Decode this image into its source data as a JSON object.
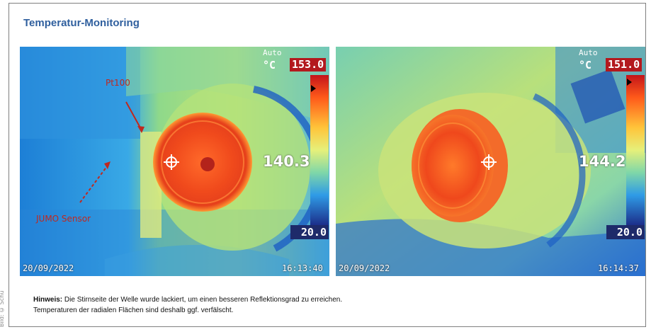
{
  "title": "Temperatur-Monitoring",
  "side_credit": "Bild: © Schu",
  "images": [
    {
      "mode": "Auto",
      "unit": "°C",
      "max": "153.0",
      "min": "20.0",
      "spot": "140.3",
      "date": "20/09/2022",
      "time": "16:13:40",
      "annotations": {
        "pt100": "Pt100",
        "sensor": "JUMO Sensor"
      }
    },
    {
      "mode": "Auto",
      "unit": "°C",
      "max": "151.0",
      "min": "20.0",
      "spot": "144.2",
      "date": "20/09/2022",
      "time": "16:14:37"
    }
  ],
  "note": {
    "label": "Hinweis:",
    "line1": "Die Stirnseite der Welle wurde lackiert, um einen besseren Reflektionsgrad zu erreichen.",
    "line2": "Temperaturen der radialen Flächen sind deshalb ggf. verfälscht."
  },
  "colors": {
    "title": "#2f5f9e",
    "hot": "#e33a1b",
    "cold": "#2b6ed6",
    "annotation": "#c0281e"
  }
}
